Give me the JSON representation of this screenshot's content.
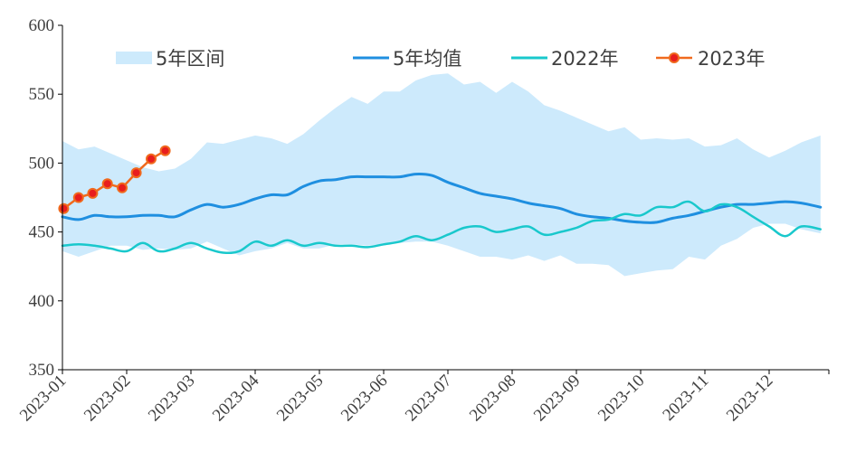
{
  "chart_data": {
    "type": "line",
    "ylim": [
      350,
      600
    ],
    "yticks": [
      350,
      400,
      450,
      500,
      550,
      600
    ],
    "xlim": [
      0,
      12
    ],
    "xticks": [
      {
        "x": 0,
        "label": "2023-01"
      },
      {
        "x": 1,
        "label": "2023-02"
      },
      {
        "x": 2,
        "label": "2023-03"
      },
      {
        "x": 3,
        "label": "2023-04"
      },
      {
        "x": 4,
        "label": "2023-05"
      },
      {
        "x": 5,
        "label": "2023-06"
      },
      {
        "x": 6,
        "label": "2023-07"
      },
      {
        "x": 7,
        "label": "2023-08"
      },
      {
        "x": 8,
        "label": "2023-09"
      },
      {
        "x": 9,
        "label": "2023-10"
      },
      {
        "x": 10,
        "label": "2023-11"
      },
      {
        "x": 11,
        "label": "2023-12"
      }
    ],
    "legend": [
      "5年区间",
      "5年均值",
      "2022年",
      "2023年"
    ],
    "legend_position": "top",
    "colors": {
      "range": "#cdeafc",
      "mean": "#1f8fe0",
      "y2022": "#19c8cc",
      "y2023": "#f06a1e",
      "y2023_marker_fill": "#e81e1e"
    },
    "range_band": {
      "x": [
        0,
        0.25,
        0.5,
        0.75,
        1.0,
        1.25,
        1.5,
        1.75,
        2.0,
        2.25,
        2.5,
        2.75,
        3.0,
        3.25,
        3.5,
        3.75,
        4.0,
        4.25,
        4.5,
        4.75,
        5.0,
        5.25,
        5.5,
        5.75,
        6.0,
        6.25,
        6.5,
        6.75,
        7.0,
        7.25,
        7.5,
        7.75,
        8.0,
        8.25,
        8.5,
        8.75,
        9.0,
        9.25,
        9.5,
        9.75,
        10.0,
        10.25,
        10.5,
        10.75,
        11.0,
        11.25,
        11.5,
        11.8
      ],
      "upper": [
        516,
        510,
        512,
        507,
        502,
        497,
        494,
        496,
        503,
        515,
        514,
        517,
        520,
        518,
        514,
        521,
        531,
        540,
        548,
        543,
        552,
        552,
        560,
        564,
        565,
        557,
        559,
        551,
        559,
        552,
        542,
        538,
        533,
        528,
        523,
        526,
        517,
        518,
        517,
        518,
        512,
        513,
        518,
        510,
        504,
        509,
        515,
        520
      ],
      "lower": [
        436,
        432,
        436,
        440,
        440,
        437,
        438,
        437,
        438,
        443,
        438,
        433,
        436,
        438,
        442,
        438,
        438,
        441,
        441,
        440,
        441,
        442,
        443,
        443,
        440,
        436,
        432,
        432,
        430,
        433,
        429,
        433,
        427,
        427,
        426,
        418,
        420,
        422,
        423,
        432,
        430,
        440,
        445,
        453,
        456,
        456,
        452,
        449
      ]
    },
    "series": [
      {
        "name": "5年均值",
        "x": [
          0,
          0.25,
          0.5,
          0.75,
          1.0,
          1.25,
          1.5,
          1.75,
          2.0,
          2.25,
          2.5,
          2.75,
          3.0,
          3.25,
          3.5,
          3.75,
          4.0,
          4.25,
          4.5,
          4.75,
          5.0,
          5.25,
          5.5,
          5.75,
          6.0,
          6.25,
          6.5,
          6.75,
          7.0,
          7.25,
          7.5,
          7.75,
          8.0,
          8.25,
          8.5,
          8.75,
          9.0,
          9.25,
          9.5,
          9.75,
          10.0,
          10.25,
          10.5,
          10.75,
          11.0,
          11.25,
          11.5,
          11.8
        ],
        "values": [
          461,
          459,
          462,
          461,
          461,
          462,
          462,
          461,
          466,
          470,
          468,
          470,
          474,
          477,
          477,
          483,
          487,
          488,
          490,
          490,
          490,
          490,
          492,
          491,
          486,
          482,
          478,
          476,
          474,
          471,
          469,
          467,
          463,
          461,
          460,
          458,
          457,
          457,
          460,
          462,
          465,
          468,
          470,
          470,
          471,
          472,
          471,
          468
        ]
      },
      {
        "name": "2022年",
        "x": [
          0,
          0.25,
          0.5,
          0.75,
          1.0,
          1.25,
          1.5,
          1.75,
          2.0,
          2.25,
          2.5,
          2.75,
          3.0,
          3.25,
          3.5,
          3.75,
          4.0,
          4.25,
          4.5,
          4.75,
          5.0,
          5.25,
          5.5,
          5.75,
          6.0,
          6.25,
          6.5,
          6.75,
          7.0,
          7.25,
          7.5,
          7.75,
          8.0,
          8.25,
          8.5,
          8.75,
          9.0,
          9.25,
          9.5,
          9.75,
          10.0,
          10.25,
          10.5,
          10.75,
          11.0,
          11.25,
          11.5,
          11.8
        ],
        "values": [
          440,
          441,
          440,
          438,
          436,
          442,
          436,
          438,
          442,
          438,
          435,
          436,
          443,
          440,
          444,
          440,
          442,
          440,
          440,
          439,
          441,
          443,
          447,
          444,
          448,
          453,
          454,
          450,
          452,
          454,
          448,
          450,
          453,
          458,
          459,
          463,
          462,
          468,
          468,
          472,
          465,
          470,
          468,
          461,
          454,
          447,
          454,
          452
        ]
      },
      {
        "name": "2023年",
        "markers": true,
        "x": [
          0.02,
          0.25,
          0.47,
          0.7,
          0.93,
          1.15,
          1.38,
          1.6
        ],
        "values": [
          467,
          475,
          478,
          485,
          482,
          493,
          503,
          509
        ]
      }
    ]
  }
}
